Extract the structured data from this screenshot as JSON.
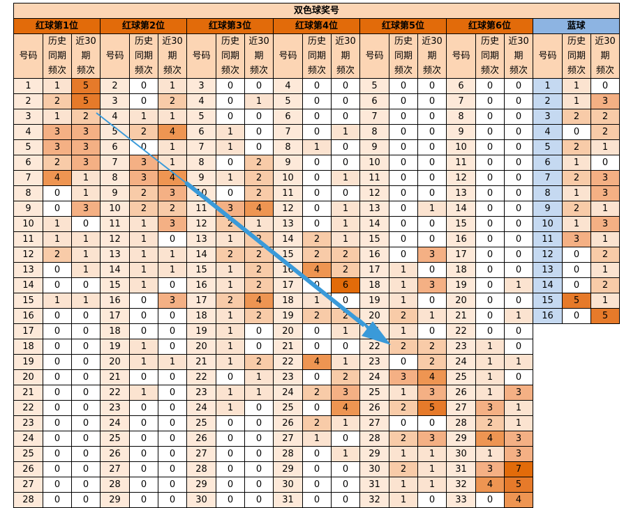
{
  "title": "双色球奖号",
  "groups": [
    {
      "label": "红球第1位",
      "kind": "red"
    },
    {
      "label": "红球第2位",
      "kind": "red"
    },
    {
      "label": "红球第3位",
      "kind": "red"
    },
    {
      "label": "红球第4位",
      "kind": "red"
    },
    {
      "label": "红球第5位",
      "kind": "red"
    },
    {
      "label": "红球第6位",
      "kind": "red"
    },
    {
      "label": "蓝球",
      "kind": "blue"
    }
  ],
  "subheaders": [
    "号码",
    "历史\n同期\n频次",
    "近30\n期\n频次"
  ],
  "colors": {
    "title_bg": "#fcd5b4",
    "red_header": "#e26b0a",
    "blue_header": "#8db4e2",
    "number_cell": "#fde9d9",
    "blue_number_cell": "#c5d9f1",
    "arrow": "#3a9ad9",
    "heat_scale": [
      "#ffffff",
      "#fbe3d0",
      "#f8cba8",
      "#f4b084",
      "#ee9552",
      "#e67a2a",
      "#e26b0a"
    ]
  },
  "columns": [
    {
      "numbers": [
        1,
        2,
        3,
        4,
        5,
        6,
        7,
        8,
        9,
        10,
        11,
        12,
        13,
        14,
        15,
        16,
        17,
        18,
        19,
        20,
        21,
        22,
        23,
        24,
        25,
        26,
        27,
        28
      ],
      "hist": [
        1,
        2,
        1,
        3,
        3,
        2,
        4,
        0,
        0,
        1,
        1,
        2,
        0,
        0,
        1,
        0,
        0,
        0,
        0,
        0,
        0,
        0,
        0,
        0,
        0,
        0,
        0,
        0
      ],
      "recent": [
        5,
        5,
        2,
        3,
        3,
        3,
        1,
        1,
        3,
        0,
        1,
        1,
        1,
        0,
        1,
        0,
        0,
        0,
        0,
        0,
        0,
        0,
        0,
        0,
        0,
        0,
        0,
        0
      ]
    },
    {
      "numbers": [
        2,
        3,
        4,
        5,
        6,
        7,
        8,
        9,
        10,
        11,
        12,
        13,
        14,
        15,
        16,
        17,
        18,
        19,
        20,
        21,
        22,
        23,
        24,
        25,
        26,
        27,
        28,
        29
      ],
      "hist": [
        0,
        0,
        1,
        2,
        0,
        3,
        3,
        2,
        2,
        1,
        1,
        1,
        1,
        1,
        0,
        0,
        0,
        1,
        1,
        0,
        1,
        0,
        0,
        0,
        0,
        0,
        0,
        0
      ],
      "recent": [
        1,
        2,
        1,
        4,
        1,
        1,
        4,
        3,
        2,
        3,
        0,
        1,
        1,
        0,
        3,
        0,
        0,
        0,
        1,
        0,
        0,
        0,
        0,
        0,
        0,
        0,
        0,
        0
      ]
    },
    {
      "numbers": [
        3,
        4,
        5,
        6,
        7,
        8,
        9,
        10,
        11,
        12,
        13,
        14,
        15,
        16,
        17,
        18,
        19,
        20,
        21,
        22,
        23,
        24,
        25,
        26,
        27,
        28,
        29,
        30
      ],
      "hist": [
        0,
        0,
        0,
        1,
        1,
        0,
        1,
        0,
        3,
        2,
        1,
        2,
        1,
        1,
        2,
        1,
        1,
        1,
        1,
        0,
        1,
        1,
        0,
        0,
        0,
        0,
        0,
        0
      ],
      "recent": [
        0,
        1,
        0,
        0,
        0,
        2,
        2,
        2,
        4,
        1,
        2,
        2,
        2,
        2,
        4,
        2,
        0,
        0,
        2,
        1,
        1,
        0,
        0,
        0,
        0,
        0,
        0,
        0
      ]
    },
    {
      "numbers": [
        4,
        5,
        6,
        7,
        8,
        9,
        10,
        11,
        12,
        13,
        14,
        15,
        16,
        17,
        18,
        19,
        20,
        21,
        22,
        23,
        24,
        25,
        26,
        27,
        28,
        29,
        30,
        31
      ],
      "hist": [
        0,
        0,
        0,
        0,
        1,
        0,
        0,
        0,
        0,
        0,
        2,
        2,
        4,
        0,
        1,
        2,
        0,
        0,
        4,
        0,
        2,
        0,
        2,
        1,
        0,
        0,
        0,
        0
      ],
      "recent": [
        0,
        0,
        0,
        1,
        0,
        0,
        1,
        0,
        1,
        1,
        1,
        2,
        2,
        6,
        0,
        2,
        1,
        0,
        1,
        2,
        3,
        4,
        1,
        0,
        1,
        0,
        0,
        0
      ]
    },
    {
      "numbers": [
        5,
        6,
        7,
        8,
        9,
        10,
        11,
        12,
        13,
        14,
        15,
        16,
        17,
        18,
        19,
        20,
        21,
        22,
        23,
        24,
        25,
        26,
        27,
        28,
        29,
        30,
        31,
        32
      ],
      "hist": [
        0,
        0,
        0,
        0,
        0,
        0,
        0,
        0,
        0,
        0,
        0,
        0,
        1,
        1,
        1,
        2,
        1,
        2,
        0,
        3,
        1,
        2,
        0,
        2,
        1,
        2,
        1,
        1
      ],
      "recent": [
        0,
        0,
        0,
        0,
        0,
        0,
        0,
        0,
        1,
        0,
        0,
        3,
        0,
        3,
        0,
        1,
        0,
        2,
        2,
        4,
        3,
        5,
        0,
        3,
        1,
        1,
        1,
        0
      ]
    },
    {
      "numbers": [
        6,
        7,
        8,
        9,
        10,
        11,
        12,
        13,
        14,
        15,
        16,
        17,
        18,
        19,
        20,
        21,
        22,
        23,
        24,
        25,
        26,
        27,
        28,
        29,
        30,
        31,
        32,
        33
      ],
      "hist": [
        0,
        0,
        0,
        0,
        0,
        0,
        0,
        0,
        0,
        0,
        0,
        0,
        0,
        0,
        0,
        0,
        0,
        1,
        1,
        1,
        1,
        3,
        2,
        4,
        1,
        3,
        4,
        0
      ],
      "recent": [
        0,
        0,
        0,
        0,
        0,
        0,
        0,
        0,
        0,
        0,
        0,
        0,
        0,
        1,
        0,
        1,
        0,
        0,
        1,
        0,
        3,
        1,
        1,
        3,
        3,
        7,
        5,
        4
      ]
    },
    {
      "numbers": [
        1,
        2,
        3,
        4,
        5,
        6,
        7,
        8,
        9,
        10,
        11,
        12,
        13,
        14,
        15,
        16
      ],
      "hist": [
        1,
        1,
        2,
        0,
        2,
        1,
        2,
        1,
        2,
        1,
        3,
        0,
        0,
        0,
        5,
        0
      ],
      "recent": [
        0,
        3,
        2,
        2,
        1,
        0,
        3,
        3,
        1,
        3,
        1,
        2,
        1,
        2,
        1,
        5
      ]
    }
  ]
}
